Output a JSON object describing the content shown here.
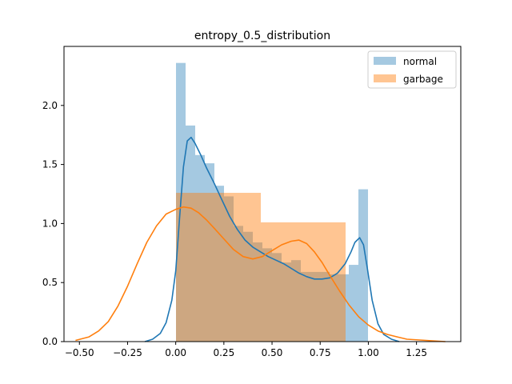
{
  "chart_data": {
    "type": "histogram-kde",
    "title": "entropy_0.5_distribution",
    "xlabel": "",
    "ylabel": "",
    "xlim": [
      -0.58,
      1.48
    ],
    "ylim": [
      0,
      2.5
    ],
    "x_ticks": [
      -0.5,
      -0.25,
      0.0,
      0.25,
      0.5,
      0.75,
      1.0,
      1.25
    ],
    "x_tick_labels": [
      "−0.50",
      "−0.25",
      "0.00",
      "0.25",
      "0.50",
      "0.75",
      "1.00",
      "1.25"
    ],
    "y_ticks": [
      0.0,
      0.5,
      1.0,
      1.5,
      2.0
    ],
    "y_tick_labels": [
      "0.0",
      "0.5",
      "1.0",
      "1.5",
      "2.0"
    ],
    "grid": false,
    "legend_position": "top-right",
    "series": [
      {
        "name": "normal",
        "color": "#1f77b4",
        "hist_bin_width": 0.05,
        "hist_bins": [
          {
            "x0": 0.0,
            "h": 2.36
          },
          {
            "x0": 0.05,
            "h": 1.83
          },
          {
            "x0": 0.1,
            "h": 1.58
          },
          {
            "x0": 0.15,
            "h": 1.51
          },
          {
            "x0": 0.2,
            "h": 1.32
          },
          {
            "x0": 0.25,
            "h": 1.23
          },
          {
            "x0": 0.3,
            "h": 0.98
          },
          {
            "x0": 0.35,
            "h": 0.93
          },
          {
            "x0": 0.4,
            "h": 0.84
          },
          {
            "x0": 0.45,
            "h": 0.79
          },
          {
            "x0": 0.5,
            "h": 0.75
          },
          {
            "x0": 0.55,
            "h": 0.67
          },
          {
            "x0": 0.6,
            "h": 0.69
          },
          {
            "x0": 0.65,
            "h": 0.59
          },
          {
            "x0": 0.7,
            "h": 0.59
          },
          {
            "x0": 0.75,
            "h": 0.59
          },
          {
            "x0": 0.8,
            "h": 0.57
          },
          {
            "x0": 0.85,
            "h": 0.57
          },
          {
            "x0": 0.9,
            "h": 0.65
          },
          {
            "x0": 0.95,
            "h": 1.29
          }
        ],
        "kde": [
          [
            -0.16,
            0.0
          ],
          [
            -0.12,
            0.02
          ],
          [
            -0.08,
            0.07
          ],
          [
            -0.05,
            0.16
          ],
          [
            -0.02,
            0.35
          ],
          [
            0.0,
            0.6
          ],
          [
            0.02,
            1.05
          ],
          [
            0.04,
            1.48
          ],
          [
            0.06,
            1.7
          ],
          [
            0.08,
            1.73
          ],
          [
            0.1,
            1.68
          ],
          [
            0.13,
            1.58
          ],
          [
            0.16,
            1.47
          ],
          [
            0.2,
            1.34
          ],
          [
            0.24,
            1.2
          ],
          [
            0.28,
            1.06
          ],
          [
            0.32,
            0.95
          ],
          [
            0.36,
            0.86
          ],
          [
            0.4,
            0.8
          ],
          [
            0.44,
            0.76
          ],
          [
            0.48,
            0.72
          ],
          [
            0.52,
            0.69
          ],
          [
            0.56,
            0.66
          ],
          [
            0.6,
            0.62
          ],
          [
            0.64,
            0.58
          ],
          [
            0.68,
            0.55
          ],
          [
            0.72,
            0.53
          ],
          [
            0.76,
            0.53
          ],
          [
            0.8,
            0.54
          ],
          [
            0.84,
            0.58
          ],
          [
            0.88,
            0.66
          ],
          [
            0.91,
            0.76
          ],
          [
            0.93,
            0.84
          ],
          [
            0.955,
            0.88
          ],
          [
            0.975,
            0.82
          ],
          [
            0.995,
            0.62
          ],
          [
            1.02,
            0.35
          ],
          [
            1.05,
            0.15
          ],
          [
            1.08,
            0.06
          ],
          [
            1.12,
            0.02
          ],
          [
            1.16,
            0.0
          ]
        ]
      },
      {
        "name": "garbage",
        "color": "#ff7f0e",
        "hist_bins": [
          {
            "x0": 0.0,
            "x1": 0.44,
            "h": 1.26
          },
          {
            "x0": 0.44,
            "x1": 0.88,
            "h": 1.01
          }
        ],
        "kde": [
          [
            -0.52,
            0.01
          ],
          [
            -0.45,
            0.04
          ],
          [
            -0.4,
            0.09
          ],
          [
            -0.35,
            0.17
          ],
          [
            -0.3,
            0.3
          ],
          [
            -0.25,
            0.47
          ],
          [
            -0.2,
            0.66
          ],
          [
            -0.15,
            0.84
          ],
          [
            -0.1,
            0.98
          ],
          [
            -0.05,
            1.08
          ],
          [
            0.0,
            1.12
          ],
          [
            0.04,
            1.14
          ],
          [
            0.08,
            1.13
          ],
          [
            0.12,
            1.09
          ],
          [
            0.16,
            1.03
          ],
          [
            0.2,
            0.96
          ],
          [
            0.25,
            0.87
          ],
          [
            0.3,
            0.78
          ],
          [
            0.35,
            0.72
          ],
          [
            0.4,
            0.7
          ],
          [
            0.45,
            0.72
          ],
          [
            0.5,
            0.77
          ],
          [
            0.55,
            0.82
          ],
          [
            0.6,
            0.85
          ],
          [
            0.64,
            0.86
          ],
          [
            0.68,
            0.83
          ],
          [
            0.72,
            0.76
          ],
          [
            0.76,
            0.67
          ],
          [
            0.8,
            0.56
          ],
          [
            0.85,
            0.43
          ],
          [
            0.9,
            0.31
          ],
          [
            0.95,
            0.21
          ],
          [
            1.0,
            0.14
          ],
          [
            1.05,
            0.09
          ],
          [
            1.1,
            0.06
          ],
          [
            1.15,
            0.04
          ],
          [
            1.2,
            0.02
          ],
          [
            1.3,
            0.01
          ],
          [
            1.4,
            0.0
          ]
        ]
      }
    ]
  }
}
